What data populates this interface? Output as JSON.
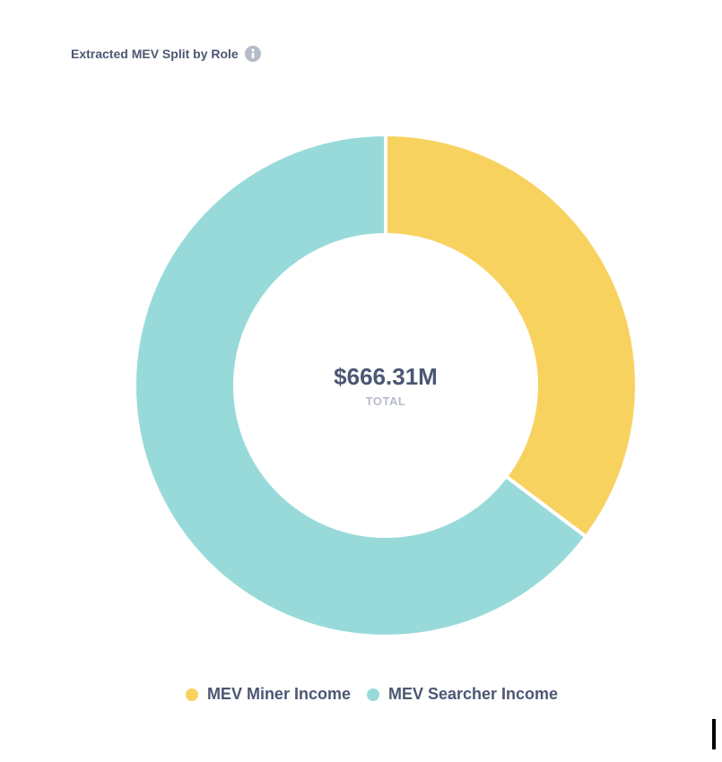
{
  "header": {
    "title": "Extracted MEV Split by Role",
    "info_icon": "info-icon"
  },
  "colors": {
    "miner": "#f7d25f",
    "searcher": "#98dad9",
    "text_primary": "#4c5773",
    "text_secondary": "#b5bcc8",
    "info_icon": "#b5bcc8"
  },
  "chart_data": {
    "type": "pie",
    "variant": "donut",
    "title": "Extracted MEV Split by Role",
    "total": {
      "value": "$666.31M",
      "label": "TOTAL"
    },
    "legend_position": "bottom",
    "slices": [
      {
        "name": "MEV Miner Income",
        "share": 0.353,
        "color": "#f7d25f"
      },
      {
        "name": "MEV Searcher Income",
        "share": 0.647,
        "color": "#98dad9"
      }
    ]
  }
}
